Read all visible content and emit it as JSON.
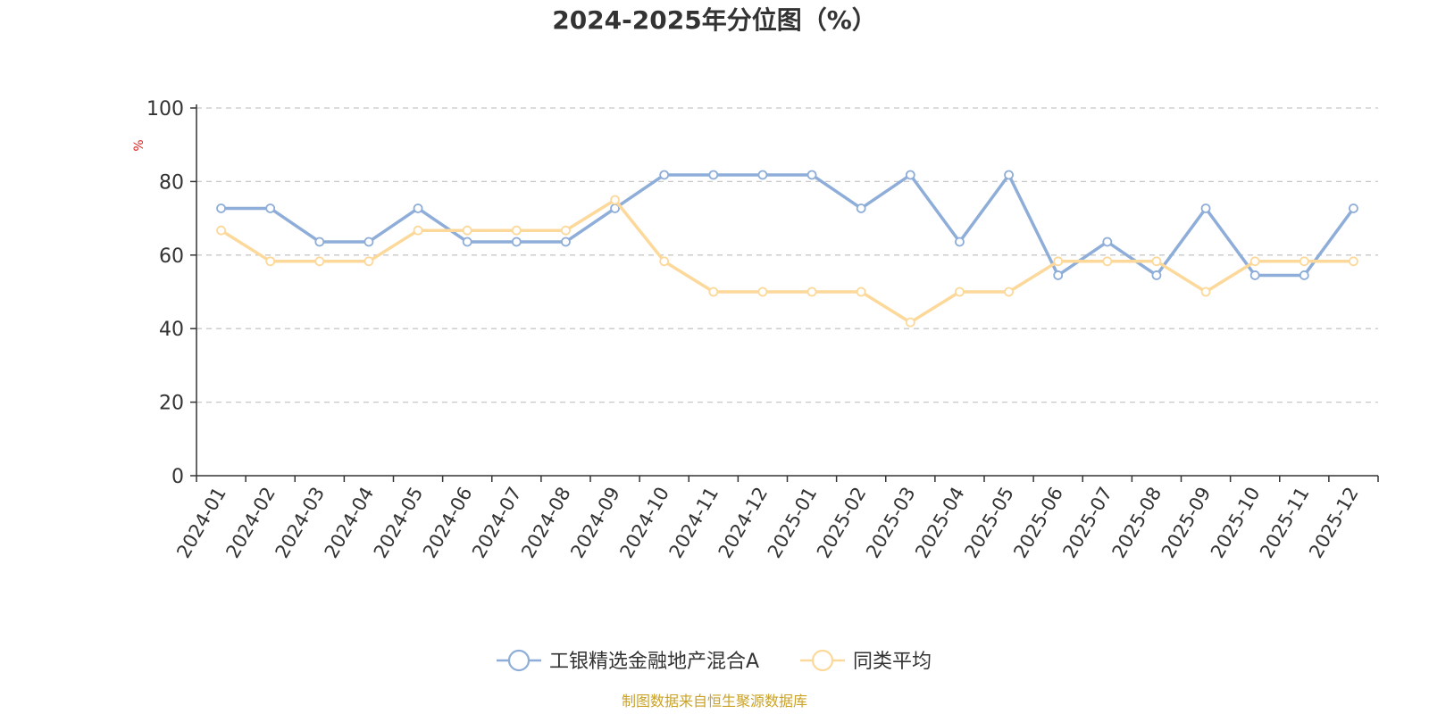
{
  "colors": {
    "series1": "#8eadd8",
    "series2": "#fcd99a",
    "unit": "#e02020",
    "source": "#c9a227",
    "grid": "#c8c8c8",
    "axis": "#333333"
  },
  "source_text": "制图数据来自恒生聚源数据库",
  "chart_data": {
    "type": "line",
    "title": "2024-2025年分位图（%）",
    "ylabel": "%",
    "xlabel": "",
    "ylim": [
      0,
      100
    ],
    "yticks": [
      "0",
      "20",
      "40",
      "60",
      "80",
      "100"
    ],
    "grid": "horizontal dashed",
    "legend_position": "bottom",
    "categories": [
      "2024-01",
      "2024-02",
      "2024-03",
      "2024-04",
      "2024-05",
      "2024-06",
      "2024-07",
      "2024-08",
      "2024-09",
      "2024-10",
      "2024-11",
      "2024-12",
      "2025-01",
      "2025-02",
      "2025-03",
      "2025-04",
      "2025-05",
      "2025-06",
      "2025-07",
      "2025-08",
      "2025-09",
      "2025-10",
      "2025-11",
      "2025-12"
    ],
    "series": [
      {
        "name": "工银精选金融地产混合A",
        "values": [
          72.7,
          72.7,
          63.6,
          63.6,
          72.7,
          63.6,
          63.6,
          63.6,
          72.7,
          81.8,
          81.8,
          81.8,
          81.8,
          72.7,
          81.8,
          63.6,
          81.8,
          54.5,
          63.6,
          54.5,
          72.7,
          54.5,
          54.5,
          72.7
        ]
      },
      {
        "name": "同类平均",
        "values": [
          66.7,
          58.3,
          58.3,
          58.3,
          66.7,
          66.7,
          66.7,
          66.7,
          75.0,
          58.3,
          50.0,
          50.0,
          50.0,
          50.0,
          41.7,
          50.0,
          50.0,
          58.3,
          58.3,
          58.3,
          50.0,
          58.3,
          58.3,
          58.3
        ]
      }
    ]
  }
}
